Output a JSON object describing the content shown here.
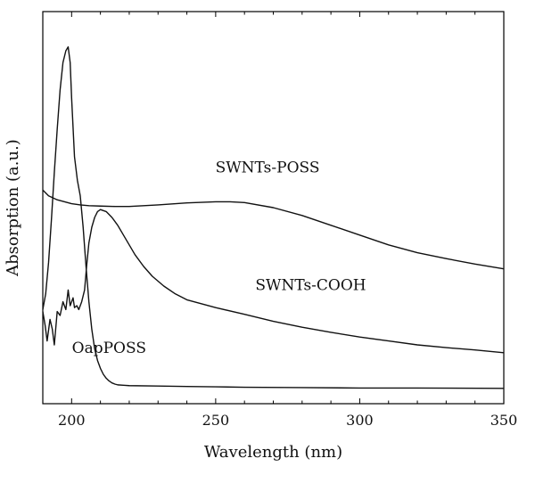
{
  "chart_data": {
    "type": "line",
    "xlabel": "Wavelength (nm)",
    "ylabel": "Absorption (a.u.)",
    "xlim": [
      190,
      350
    ],
    "ylim": [
      0,
      1
    ],
    "xticks": [
      200,
      250,
      300,
      350
    ],
    "y_tick_labels": false,
    "grid": false,
    "legend": "none",
    "series": [
      {
        "name": "SWNTs-POSS",
        "label_at": [
          268,
          0.59
        ],
        "x": [
          190,
          192,
          195,
          198,
          200,
          203,
          206,
          210,
          215,
          220,
          230,
          240,
          250,
          255,
          260,
          270,
          280,
          290,
          300,
          310,
          320,
          330,
          340,
          350
        ],
        "y": [
          0.545,
          0.53,
          0.52,
          0.514,
          0.51,
          0.507,
          0.505,
          0.504,
          0.503,
          0.503,
          0.507,
          0.512,
          0.515,
          0.515,
          0.513,
          0.5,
          0.48,
          0.455,
          0.43,
          0.405,
          0.385,
          0.37,
          0.356,
          0.344
        ]
      },
      {
        "name": "SWNTs-COOH",
        "label_at": [
          283,
          0.29
        ],
        "x": [
          190,
          190.8,
          191.5,
          192.5,
          193.3,
          194,
          195,
          196,
          197,
          198,
          198.8,
          199.5,
          200.5,
          201,
          201.8,
          202.5,
          203.5,
          204.5,
          205.2,
          206,
          207,
          208,
          209,
          210,
          212,
          214,
          216,
          218,
          220,
          222,
          225,
          228,
          232,
          236,
          240,
          245,
          250,
          260,
          270,
          280,
          290,
          300,
          310,
          320,
          330,
          340,
          350
        ],
        "y": [
          0.235,
          0.2,
          0.16,
          0.215,
          0.19,
          0.15,
          0.235,
          0.225,
          0.26,
          0.24,
          0.29,
          0.25,
          0.27,
          0.245,
          0.25,
          0.24,
          0.26,
          0.29,
          0.35,
          0.41,
          0.45,
          0.475,
          0.49,
          0.495,
          0.49,
          0.475,
          0.455,
          0.43,
          0.405,
          0.38,
          0.35,
          0.325,
          0.3,
          0.28,
          0.265,
          0.255,
          0.245,
          0.228,
          0.21,
          0.195,
          0.182,
          0.17,
          0.16,
          0.15,
          0.143,
          0.137,
          0.13
        ]
      },
      {
        "name": "OapPOSS",
        "label_at": [
          213,
          0.13
        ],
        "x": [
          190,
          191,
          192,
          193,
          194,
          195,
          196,
          197,
          198,
          198.8,
          199.5,
          200,
          201,
          202,
          203,
          204,
          205,
          206,
          207,
          208,
          209,
          210,
          211,
          212,
          213,
          214,
          215,
          216,
          218,
          220,
          230,
          240,
          250,
          260,
          280,
          300,
          320,
          350
        ],
        "y": [
          0.24,
          0.28,
          0.36,
          0.47,
          0.59,
          0.7,
          0.8,
          0.87,
          0.9,
          0.91,
          0.87,
          0.78,
          0.63,
          0.57,
          0.53,
          0.45,
          0.35,
          0.26,
          0.19,
          0.14,
          0.11,
          0.09,
          0.075,
          0.065,
          0.058,
          0.053,
          0.05,
          0.048,
          0.047,
          0.046,
          0.045,
          0.044,
          0.043,
          0.042,
          0.041,
          0.04,
          0.04,
          0.039
        ]
      }
    ]
  }
}
